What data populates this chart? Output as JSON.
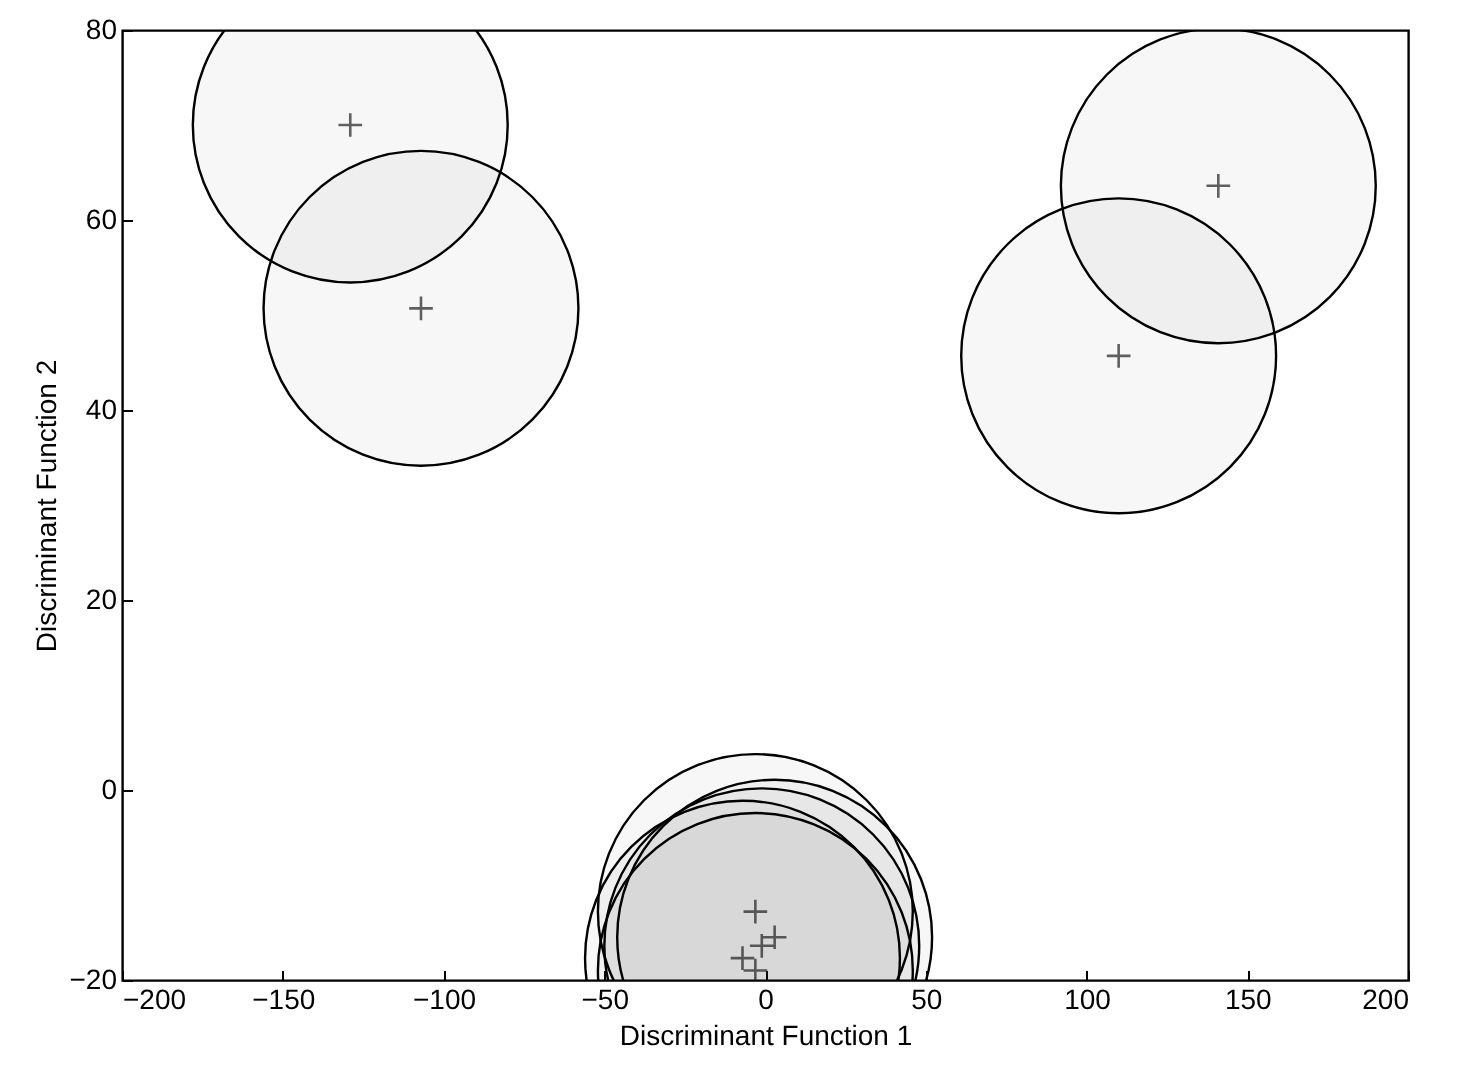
{
  "chart_data": {
    "type": "scatter",
    "xlabel": "Discriminant Function 1",
    "ylabel": "Discriminant Function 2",
    "xlim": [
      -200,
      200
    ],
    "xticks": [
      -200,
      -150,
      -100,
      -50,
      0,
      50,
      100,
      150,
      200
    ],
    "ylim": [
      -20,
      80
    ],
    "yticks": [
      -20,
      0,
      20,
      40,
      60,
      80
    ],
    "grid": false,
    "legend": false,
    "series": [
      {
        "type": "bubble",
        "marker": "circle",
        "color": "#000000",
        "x": [
          -129,
          -107,
          141,
          110,
          -3,
          3,
          -1,
          -7,
          -3
        ],
        "values": [
          70,
          50.7,
          63.6,
          45.7,
          -12.8,
          -15.5,
          -16.4,
          -17.7,
          -19
        ],
        "sizes": [
          1,
          1,
          1,
          1,
          1,
          1,
          1,
          1,
          1
        ]
      },
      {
        "type": "scatter",
        "marker": "cross",
        "color": "#202020",
        "x": [
          -129,
          -107,
          141,
          110,
          -3,
          3,
          -1,
          -7,
          -3
        ],
        "values": [
          70,
          50.7,
          63.6,
          45.7,
          -12.8,
          -15.5,
          -16.4,
          -17.7,
          -19
        ]
      }
    ]
  }
}
